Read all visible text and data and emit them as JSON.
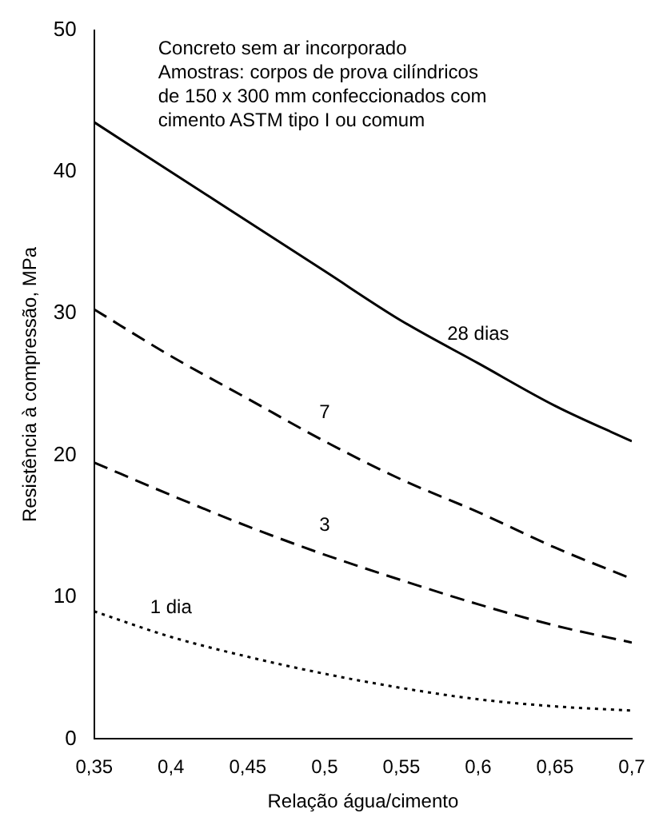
{
  "chart_data": {
    "type": "line",
    "xlabel": "Relação água/cimento",
    "ylabel": "Resistência à compressão, MPa",
    "annotations": [
      "Concreto sem ar incorporado",
      "Amostras: corpos de prova cilíndricos",
      "de 150 x 300 mm confeccionados com",
      "cimento ASTM tipo I ou comum"
    ],
    "x": [
      0.35,
      0.4,
      0.45,
      0.5,
      0.55,
      0.6,
      0.65,
      0.7
    ],
    "series": [
      {
        "name": "28 dias",
        "color": "#000000",
        "line_style": "solid",
        "values": [
          43.5,
          40,
          36.5,
          33,
          29.5,
          26.5,
          23.5,
          21
        ]
      },
      {
        "name": "7",
        "color": "#000000",
        "line_style": "dashed",
        "values": [
          30.3,
          27,
          24,
          21,
          18.3,
          16,
          13.5,
          11.3
        ]
      },
      {
        "name": "3",
        "color": "#000000",
        "line_style": "dashed",
        "values": [
          19.5,
          17.2,
          15,
          13,
          11.2,
          9.5,
          8,
          6.8
        ]
      },
      {
        "name": "1 dia",
        "color": "#000000",
        "line_style": "dotted",
        "values": [
          9,
          7.2,
          5.8,
          4.6,
          3.6,
          2.8,
          2.3,
          2
        ]
      }
    ],
    "xlim": [
      0.35,
      0.7
    ],
    "ylim": [
      0,
      50
    ],
    "xticks": [
      {
        "value": 0.35,
        "label": "0,35"
      },
      {
        "value": 0.4,
        "label": "0,4"
      },
      {
        "value": 0.45,
        "label": "0,45"
      },
      {
        "value": 0.5,
        "label": "0,5"
      },
      {
        "value": 0.55,
        "label": "0,55"
      },
      {
        "value": 0.6,
        "label": "0,6"
      },
      {
        "value": 0.65,
        "label": "0,65"
      },
      {
        "value": 0.7,
        "label": "0,7"
      }
    ],
    "yticks": [
      0,
      10,
      20,
      30,
      40,
      50
    ],
    "grid": false,
    "legend": false,
    "marker": "none"
  }
}
